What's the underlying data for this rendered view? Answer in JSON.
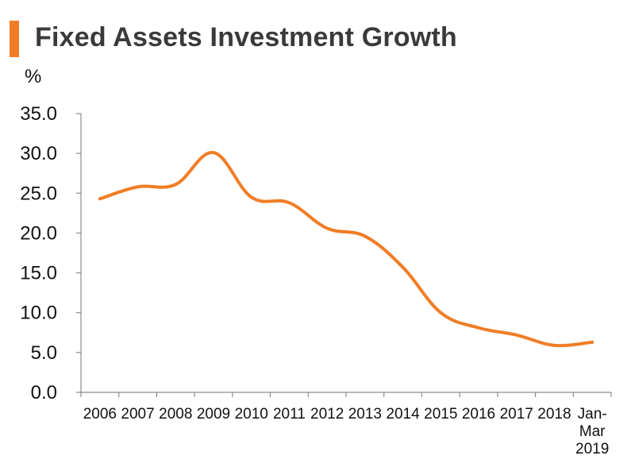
{
  "title": "Fixed Assets Investment Growth",
  "unit_label": "%",
  "colors": {
    "accent": "#F07D25",
    "line": "#F07D25",
    "axis": "#8c8c8c",
    "text": "#111111"
  },
  "chart_data": {
    "type": "line",
    "title": "Fixed Assets Investment Growth",
    "ylabel": "%",
    "xlabel": "",
    "ylim": [
      0,
      35
    ],
    "yticks": [
      "0.0",
      "5.0",
      "10.0",
      "15.0",
      "20.0",
      "25.0",
      "30.0",
      "35.0"
    ],
    "grid": false,
    "legend": "none",
    "categories": [
      [
        "2006"
      ],
      [
        "2007"
      ],
      [
        "2008"
      ],
      [
        "2009"
      ],
      [
        "2010"
      ],
      [
        "2011"
      ],
      [
        "2012"
      ],
      [
        "2013"
      ],
      [
        "2014"
      ],
      [
        "2015"
      ],
      [
        "2016"
      ],
      [
        "2017"
      ],
      [
        "2018"
      ],
      [
        "Jan-",
        "Mar",
        "2019"
      ]
    ],
    "series": [
      {
        "values": [
          24.3,
          25.8,
          26.1,
          30.1,
          24.5,
          23.8,
          20.6,
          19.6,
          15.7,
          10.0,
          8.1,
          7.2,
          5.9,
          6.3
        ]
      }
    ]
  }
}
